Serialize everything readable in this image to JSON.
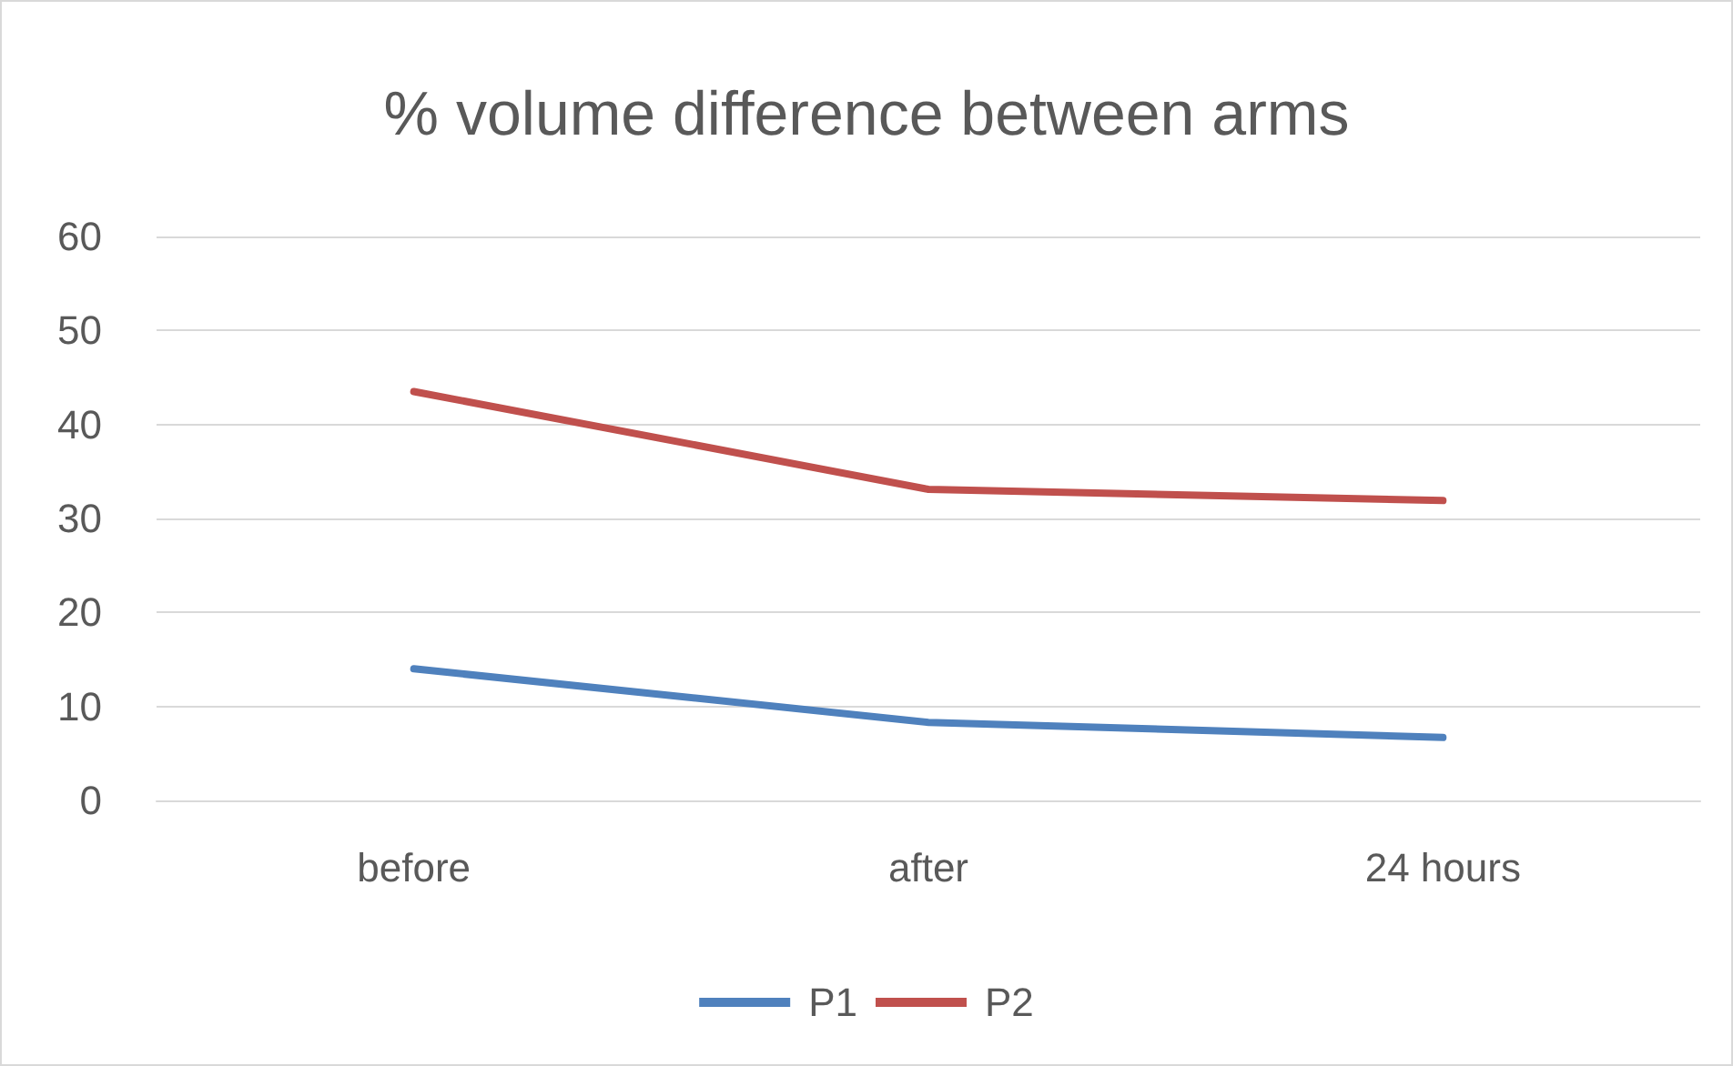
{
  "chart_data": {
    "type": "line",
    "title": "% volume difference between arms",
    "categories": [
      "before",
      "after",
      "24 hours"
    ],
    "series": [
      {
        "name": "P1",
        "color": "#4f81bd",
        "values": [
          14.0,
          8.3,
          6.7
        ]
      },
      {
        "name": "P2",
        "color": "#c0504d",
        "values": [
          43.5,
          33.1,
          31.9
        ]
      }
    ],
    "ylim": [
      0,
      60
    ],
    "yticks": [
      0,
      10,
      20,
      30,
      40,
      50,
      60
    ],
    "grid": "y",
    "legend": "bottom",
    "marker": "none",
    "line_style": "solid"
  }
}
